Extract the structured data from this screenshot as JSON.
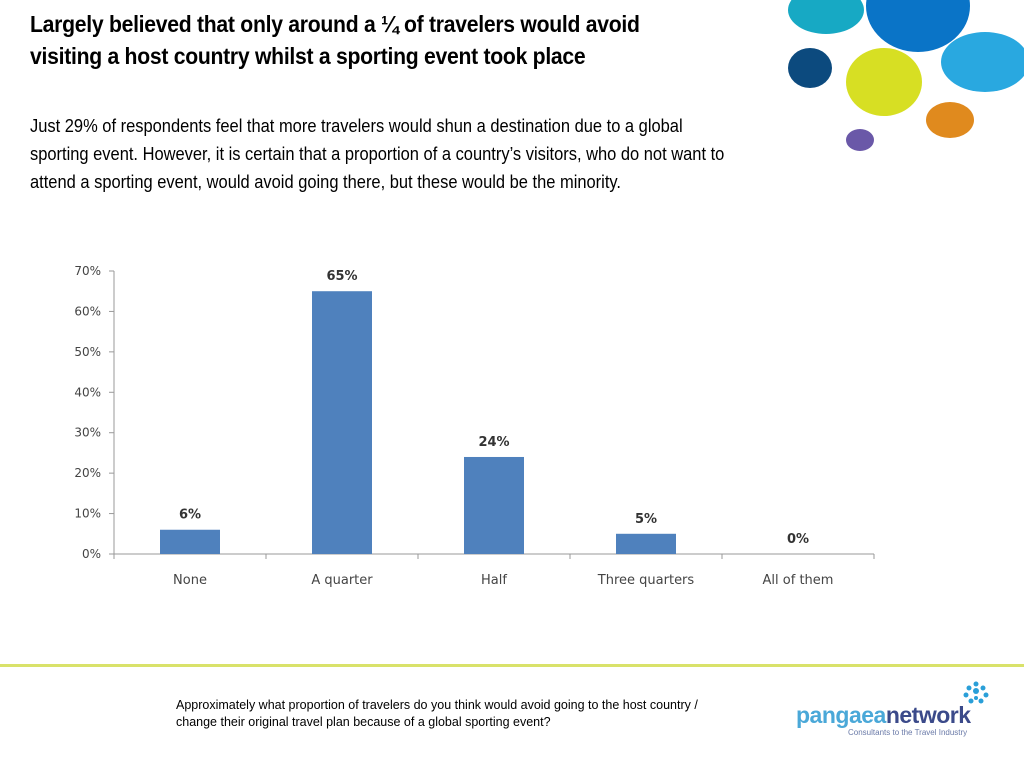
{
  "slide": {
    "title": "Largely believed that only around a ¼ of travelers would avoid visiting a host country whilst a sporting event took place",
    "subtitle": "Just 29% of respondents feel that more travelers would shun a destination due to a global sporting event. However, it is certain that a proportion of a country’s visitors, who do not want to attend a sporting event, would avoid going there, but these would be the minority.",
    "question": "Approximately what proportion of travelers do you think would avoid going to the host country / change their original travel plan because of a global sporting event?"
  },
  "logo": {
    "text_a": "pangaea",
    "text_b": "network",
    "tagline": "Consultants to the Travel Industry"
  },
  "colors": {
    "bar": "#4f81bd",
    "divider": "#d9e26a"
  },
  "decor_circles": [
    {
      "color": "#17a9c4"
    },
    {
      "color": "#0a74c7"
    },
    {
      "color": "#0c4a7e"
    },
    {
      "color": "#d7df23"
    },
    {
      "color": "#29a8e0"
    },
    {
      "color": "#e08a1e"
    },
    {
      "color": "#6a58a8"
    }
  ],
  "chart_data": {
    "type": "bar",
    "categories": [
      "None",
      "A quarter",
      "Half",
      "Three quarters",
      "All of them"
    ],
    "values": [
      6,
      65,
      24,
      5,
      0
    ],
    "data_labels": [
      "6%",
      "65%",
      "24%",
      "5%",
      "0%"
    ],
    "yticks": [
      "0%",
      "10%",
      "20%",
      "30%",
      "40%",
      "50%",
      "60%",
      "70%"
    ],
    "ylim": [
      0,
      70
    ],
    "title": "",
    "xlabel": "",
    "ylabel": "",
    "grid": false,
    "legend": "none"
  }
}
